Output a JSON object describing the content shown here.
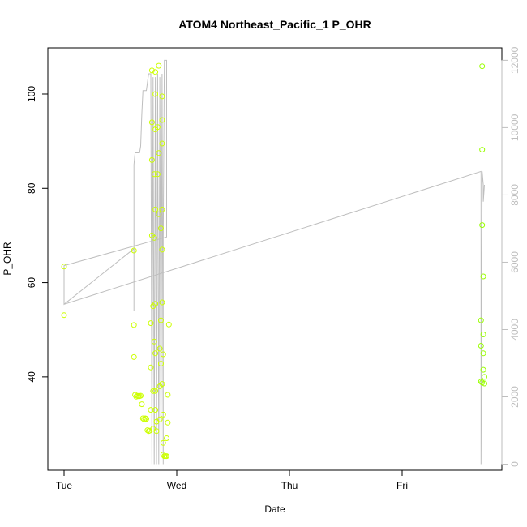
{
  "chart_data": {
    "type": "scatter",
    "title": "ATOM4 Northeast_Pacific_1 P_OHR",
    "xlabel": "Date",
    "ylabel": "P_OHR",
    "x_ticks": [
      "Tue",
      "Wed",
      "Thu",
      "Fri"
    ],
    "y_ticks": [
      40,
      60,
      80,
      100
    ],
    "y2_ticks": [
      0,
      2000,
      4000,
      6000,
      8000,
      10000,
      12000
    ],
    "xlim": [
      "Tue 00:00",
      "Fri 20:30"
    ],
    "ylim": [
      20.2,
      109.8
    ],
    "y2lim": [
      -180,
      12370
    ],
    "grid": false,
    "x_unit_note": "x values are days from Tue 00:00",
    "colors": {
      "points_early": "#ccff00",
      "points_late": "#99ff00",
      "line": "#bebebe",
      "axis": "#000000",
      "y2_axis": "#bebebe"
    },
    "series": [
      {
        "type": "scatter",
        "axis": "left",
        "points": [
          {
            "x": 0.0,
            "y": 63.4
          },
          {
            "x": 0.0,
            "y": 53.1
          },
          {
            "x": 0.62,
            "y": 66.8
          },
          {
            "x": 0.62,
            "y": 51.0
          },
          {
            "x": 0.62,
            "y": 44.2
          },
          {
            "x": 0.63,
            "y": 36.2
          },
          {
            "x": 0.64,
            "y": 35.8
          },
          {
            "x": 0.65,
            "y": 36.0
          },
          {
            "x": 0.66,
            "y": 35.9
          },
          {
            "x": 0.67,
            "y": 35.9
          },
          {
            "x": 0.68,
            "y": 36.0
          },
          {
            "x": 0.69,
            "y": 34.2
          },
          {
            "x": 0.7,
            "y": 31.2
          },
          {
            "x": 0.71,
            "y": 31.0
          },
          {
            "x": 0.72,
            "y": 31.2
          },
          {
            "x": 0.73,
            "y": 31.1
          },
          {
            "x": 0.74,
            "y": 28.7
          },
          {
            "x": 0.75,
            "y": 28.5
          },
          {
            "x": 0.76,
            "y": 28.6
          },
          {
            "x": 0.77,
            "y": 42.0
          },
          {
            "x": 0.77,
            "y": 51.4
          },
          {
            "x": 0.77,
            "y": 33.0
          },
          {
            "x": 0.78,
            "y": 105.0
          },
          {
            "x": 0.78,
            "y": 94.0
          },
          {
            "x": 0.78,
            "y": 86.0
          },
          {
            "x": 0.78,
            "y": 70.0
          },
          {
            "x": 0.79,
            "y": 55.0
          },
          {
            "x": 0.79,
            "y": 37.0
          },
          {
            "x": 0.79,
            "y": 29.0
          },
          {
            "x": 0.8,
            "y": 83.0
          },
          {
            "x": 0.8,
            "y": 69.5
          },
          {
            "x": 0.8,
            "y": 47.5
          },
          {
            "x": 0.81,
            "y": 104.7
          },
          {
            "x": 0.81,
            "y": 100.0
          },
          {
            "x": 0.81,
            "y": 92.5
          },
          {
            "x": 0.81,
            "y": 75.5
          },
          {
            "x": 0.81,
            "y": 55.5
          },
          {
            "x": 0.81,
            "y": 45.0
          },
          {
            "x": 0.81,
            "y": 37.0
          },
          {
            "x": 0.81,
            "y": 33.0
          },
          {
            "x": 0.82,
            "y": 30.5
          },
          {
            "x": 0.82,
            "y": 28.5
          },
          {
            "x": 0.83,
            "y": 83.0
          },
          {
            "x": 0.83,
            "y": 93.0
          },
          {
            "x": 0.84,
            "y": 106.0
          },
          {
            "x": 0.84,
            "y": 87.5
          },
          {
            "x": 0.84,
            "y": 74.5
          },
          {
            "x": 0.85,
            "y": 46.0
          },
          {
            "x": 0.85,
            "y": 38.0
          },
          {
            "x": 0.85,
            "y": 31.0
          },
          {
            "x": 0.86,
            "y": 52.0
          },
          {
            "x": 0.86,
            "y": 71.5
          },
          {
            "x": 0.86,
            "y": 42.8
          },
          {
            "x": 0.87,
            "y": 99.5
          },
          {
            "x": 0.87,
            "y": 94.5
          },
          {
            "x": 0.87,
            "y": 89.5
          },
          {
            "x": 0.87,
            "y": 75.5
          },
          {
            "x": 0.87,
            "y": 67.0
          },
          {
            "x": 0.87,
            "y": 55.8
          },
          {
            "x": 0.87,
            "y": 38.5
          },
          {
            "x": 0.88,
            "y": 44.8
          },
          {
            "x": 0.88,
            "y": 32.0
          },
          {
            "x": 0.88,
            "y": 26.0
          },
          {
            "x": 0.88,
            "y": 23.5
          },
          {
            "x": 0.89,
            "y": 23.2
          },
          {
            "x": 0.9,
            "y": 23.2
          },
          {
            "x": 0.91,
            "y": 23.2
          },
          {
            "x": 0.91,
            "y": 27.0
          },
          {
            "x": 0.92,
            "y": 30.3
          },
          {
            "x": 0.92,
            "y": 36.2
          },
          {
            "x": 0.93,
            "y": 51.1
          }
        ]
      },
      {
        "type": "scatter",
        "axis": "left",
        "points": [
          {
            "x": 3.71,
            "y": 105.9
          },
          {
            "x": 3.71,
            "y": 88.2
          },
          {
            "x": 3.71,
            "y": 72.2
          },
          {
            "x": 3.72,
            "y": 61.3
          },
          {
            "x": 3.7,
            "y": 52.0
          },
          {
            "x": 3.72,
            "y": 49.0
          },
          {
            "x": 3.7,
            "y": 46.6
          },
          {
            "x": 3.72,
            "y": 45.0
          },
          {
            "x": 3.72,
            "y": 41.5
          },
          {
            "x": 3.73,
            "y": 40.0
          },
          {
            "x": 3.7,
            "y": 39.0
          },
          {
            "x": 3.71,
            "y": 38.8
          },
          {
            "x": 3.73,
            "y": 38.6
          }
        ]
      },
      {
        "type": "line",
        "axis": "right",
        "points": [
          {
            "x": 0.0,
            "y": 5900
          },
          {
            "x": 0.0,
            "y": 4750
          },
          {
            "x": 0.62,
            "y": 6400
          },
          {
            "x": 0.62,
            "y": 4550
          },
          {
            "x": 0.62,
            "y": 8900
          },
          {
            "x": 0.63,
            "y": 9250
          },
          {
            "x": 0.67,
            "y": 9250
          },
          {
            "x": 0.68,
            "y": 9450
          },
          {
            "x": 0.69,
            "y": 10400
          },
          {
            "x": 0.7,
            "y": 11100
          },
          {
            "x": 0.73,
            "y": 11100
          },
          {
            "x": 0.75,
            "y": 11600
          },
          {
            "x": 0.77,
            "y": 11600
          },
          {
            "x": 0.78,
            "y": 0
          },
          {
            "x": 0.79,
            "y": 11500
          },
          {
            "x": 0.8,
            "y": 0
          },
          {
            "x": 0.81,
            "y": 11500
          },
          {
            "x": 0.82,
            "y": 0
          },
          {
            "x": 0.83,
            "y": 11600
          },
          {
            "x": 0.84,
            "y": 0
          },
          {
            "x": 0.85,
            "y": 11500
          },
          {
            "x": 0.86,
            "y": 0
          },
          {
            "x": 0.87,
            "y": 11600
          },
          {
            "x": 0.88,
            "y": 0
          },
          {
            "x": 0.88,
            "y": 6700
          },
          {
            "x": 0.89,
            "y": 12000
          },
          {
            "x": 0.91,
            "y": 12000
          },
          {
            "x": 0.91,
            "y": 6750
          },
          {
            "x": 0.0,
            "y": 5900
          },
          {
            "x": 0.0,
            "y": 4750
          },
          {
            "x": 3.7,
            "y": 8700
          },
          {
            "x": 3.7,
            "y": 0
          },
          {
            "x": 3.71,
            "y": 8700
          },
          {
            "x": 3.72,
            "y": 8300
          },
          {
            "x": 3.72,
            "y": 7800
          },
          {
            "x": 3.73,
            "y": 8300
          }
        ]
      }
    ]
  }
}
